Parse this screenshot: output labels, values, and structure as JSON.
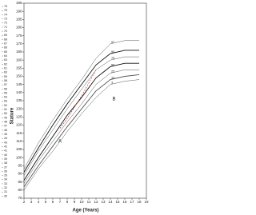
{
  "chart_data": {
    "type": "line",
    "x_label": "Age (Years)",
    "y_label": "Stature",
    "x": [
      2,
      4,
      6,
      8,
      10,
      12,
      14,
      16,
      18
    ],
    "xlim": [
      2,
      19
    ],
    "xticks": [
      2,
      3,
      4,
      5,
      6,
      7,
      8,
      9,
      10,
      11,
      12,
      13,
      14,
      15,
      16,
      17,
      18,
      19
    ],
    "ylim": [
      75,
      195
    ],
    "yticks": [
      75,
      80,
      85,
      90,
      95,
      100,
      105,
      110,
      115,
      120,
      125,
      130,
      135,
      140,
      145,
      150,
      155,
      160,
      165,
      170,
      175,
      180,
      185,
      190,
      195
    ],
    "y2lim": [
      29.5,
      76.8
    ],
    "y2ticks": [
      30,
      31,
      32,
      33,
      34,
      35,
      36,
      37,
      38,
      39,
      40,
      41,
      42,
      43,
      44,
      45,
      46,
      47,
      48,
      49,
      50,
      51,
      52,
      53,
      54,
      55,
      56,
      57,
      58,
      59,
      60,
      61,
      62,
      63,
      64,
      65,
      66,
      67,
      68,
      69,
      70,
      71,
      72,
      73,
      74,
      75,
      76
    ],
    "series": [
      {
        "name": "97",
        "color": "#555",
        "values": [
          93,
          109,
          123,
          136,
          148,
          161,
          170,
          172,
          172
        ]
      },
      {
        "name": "90",
        "color": "#111",
        "values": [
          91,
          106,
          120,
          133,
          145,
          157,
          164,
          166,
          166
        ]
      },
      {
        "name": "75",
        "color": "#555",
        "values": [
          89,
          104,
          117,
          130,
          142,
          154,
          160,
          162,
          162
        ]
      },
      {
        "name": "50",
        "color": "#111",
        "values": [
          86,
          100,
          113,
          126,
          137,
          149,
          156,
          158,
          158
        ]
      },
      {
        "name": "25",
        "color": "#555",
        "values": [
          84,
          98,
          110,
          122,
          133,
          145,
          152,
          154,
          154
        ]
      },
      {
        "name": "10",
        "color": "#555",
        "values": [
          82,
          95,
          107,
          119,
          130,
          141,
          148,
          150,
          151
        ]
      },
      {
        "name": "3",
        "color": "#555",
        "values": [
          80,
          93,
          104,
          116,
          127,
          137,
          145,
          147,
          148
        ]
      }
    ],
    "patient": {
      "color": "#c0392b",
      "x": [
        7,
        8,
        9,
        10,
        11,
        12
      ],
      "values": [
        118,
        124,
        131,
        138,
        146,
        154
      ]
    },
    "annotations": [
      {
        "text": "A",
        "x": 7,
        "y": 110
      },
      {
        "text": "B",
        "x": 14.5,
        "y": 136
      }
    ]
  }
}
